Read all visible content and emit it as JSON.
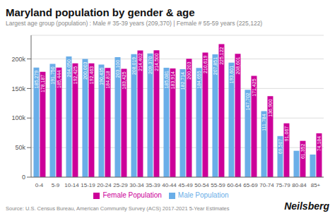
{
  "chart_data": {
    "type": "bar",
    "title": "Maryland population by gender & age",
    "subtitle": "Largest age group (population) : Male # 35-39 years (209,370) | Female # 55-59 years (225,122)",
    "categories": [
      "0-4",
      "5-9",
      "10-14",
      "15-19",
      "20-24",
      "25-29",
      "30-34",
      "35-39",
      "40-44",
      "45-49",
      "50-54",
      "55-59",
      "60-64",
      "65-69",
      "70-74",
      "75-79",
      "80-84",
      "85+"
    ],
    "series": [
      {
        "name": "Male Population",
        "color": "#6aaee8",
        "values": [
          185279,
          191750,
          204050,
          200003,
          190435,
          203100,
          208019,
          209370,
          185081,
          182714,
          184655,
          207851,
          193601,
          147702,
          111784,
          69507,
          44583,
          38238
        ],
        "value_labels": [
          "185,279",
          "191,750",
          "204,050",
          "200,003",
          "190,435",
          "203,100",
          "208,019",
          "209,370",
          "185,081",
          "182,714",
          "184,655",
          "207,851",
          "193,601",
          "147,702",
          "111,784",
          "69,507",
          null,
          null
        ]
      },
      {
        "name": "Female Population",
        "color": "#cc0099",
        "values": [
          178187,
          185444,
          192425,
          192463,
          184818,
          183425,
          214402,
          214500,
          183914,
          200203,
          210619,
          225122,
          208601,
          171425,
          136900,
          91067,
          61352,
          74184
        ],
        "value_labels": [
          "178,187",
          "185,444",
          "192,425",
          "192,463",
          "184,818",
          "183,425",
          "214,402",
          "214,500",
          "183,914",
          "200,203",
          "210,619",
          "225,122",
          "208,601",
          "171,425",
          "136,900",
          "91,067",
          "61,352",
          "74,184"
        ]
      }
    ],
    "ylim": [
      0,
      240000
    ],
    "yticks": [
      0,
      {
        "value": 50000,
        "label": "50k"
      },
      {
        "value": 100000,
        "label": "100k"
      },
      {
        "value": 150000,
        "label": "150k"
      },
      {
        "value": 200000,
        "label": "200k"
      }
    ],
    "grid": true,
    "legend": "bottom",
    "data_labels": true,
    "annotations": [
      "Source: U.S. Census Bureau, American Community Survey (ACS) 2017-2021 5-Year Estimates",
      "Neilsberg"
    ]
  }
}
